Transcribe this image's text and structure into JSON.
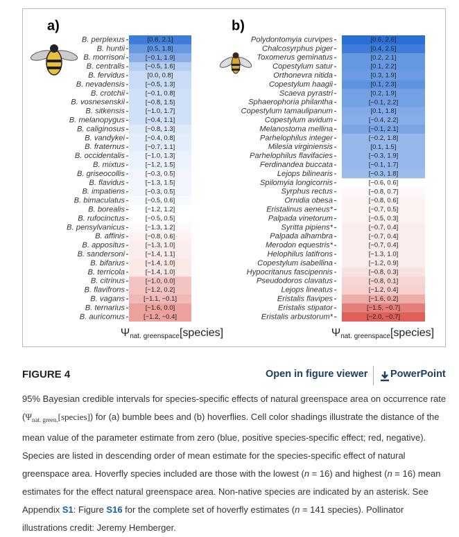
{
  "figure": {
    "colors": {
      "positive": "#2a6fd6",
      "negative": "#d8433a"
    },
    "panels": [
      {
        "label": "a)",
        "x_label": {
          "symbol": "Ψ",
          "sub": "nat. greenspace",
          "main": "[species]"
        },
        "rows": [
          [
            "B. perplexus",
            0.8,
            2.1,
            "[0.8, 2.1]"
          ],
          [
            "B. huntii",
            0.5,
            1.8,
            "[0.5, 1.8]"
          ],
          [
            "B. morrisoni",
            -0.1,
            1.9,
            "[−0.1, 1.9]"
          ],
          [
            "B. centralis",
            -0.5,
            1.6,
            "[−0.5, 1.6]"
          ],
          [
            "B. fervidus",
            0.0,
            0.8,
            "[0.0, 0.8]"
          ],
          [
            "B. nevadensis",
            -0.5,
            1.3,
            "[−0.5, 1.3]"
          ],
          [
            "B. crotchii",
            -0.1,
            0.8,
            "[−0.1, 0.8]"
          ],
          [
            "B. vosnesenskii",
            -0.8,
            1.5,
            "[−0.8, 1.5]"
          ],
          [
            "B. sitkensis",
            -1.0,
            1.7,
            "[−1.0, 1.7]"
          ],
          [
            "B. melanopygus",
            -0.4,
            1.1,
            "[−0.4, 1.1]"
          ],
          [
            "B. caliginosus",
            -0.8,
            1.3,
            "[−0.8, 1.3]"
          ],
          [
            "B. vandykei",
            -0.4,
            0.8,
            "[−0.4, 0.8]"
          ],
          [
            "B. fraternus",
            -0.7,
            1.1,
            "[−0.7, 1.1]"
          ],
          [
            "B. occidentalis",
            -1.0,
            1.3,
            "[−1.0, 1.3]"
          ],
          [
            "B. mixtus",
            -1.2,
            1.5,
            "[−1.2, 1.5]"
          ],
          [
            "B. griseocollis",
            -0.3,
            0.5,
            "[−0.3, 0.5]"
          ],
          [
            "B. flavidus",
            -1.3,
            1.5,
            "[−1.3, 1.5]"
          ],
          [
            "B. impatiens",
            -0.3,
            0.5,
            "[−0.3, 0.5]"
          ],
          [
            "B. bimaculatus",
            -0.5,
            0.6,
            "[−0.5, 0.6]"
          ],
          [
            "B. borealis",
            -1.2,
            1.2,
            "[−1.2, 1.2]"
          ],
          [
            "B. rufocinctus",
            -0.5,
            0.5,
            "[−0.5, 0.5]"
          ],
          [
            "B. pensylvanicus",
            -1.3,
            1.2,
            "[−1.3, 1.2]"
          ],
          [
            "B. affinis",
            -0.8,
            0.6,
            "[−0.8, 0.6]"
          ],
          [
            "B. appositus",
            -1.3,
            1.0,
            "[−1.3, 1.0]"
          ],
          [
            "B. sandersoni",
            -1.4,
            1.1,
            "[−1.4, 1.1]"
          ],
          [
            "B. bifarius",
            -1.4,
            1.0,
            "[−1.4, 1.0]"
          ],
          [
            "B. terricola",
            -1.4,
            1.0,
            "[−1.4, 1.0]"
          ],
          [
            "B. citrinus",
            -1.0,
            0.0,
            "[−1.0, 0.0]"
          ],
          [
            "B. flavifrons",
            -1.2,
            0.2,
            "[−1.2, 0.2]"
          ],
          [
            "B. vagans",
            -1.1,
            -0.1,
            "[−1.1, −0.1]"
          ],
          [
            "B. ternarius",
            -1.6,
            0.0,
            "[−1.6, 0.0]"
          ],
          [
            "B. auricomus",
            -1.2,
            -0.4,
            "[−1.2, −0.4]"
          ]
        ]
      },
      {
        "label": "b)",
        "x_label": {
          "symbol": "Ψ",
          "sub": "nat. greenspace",
          "main": "[species]"
        },
        "rows": [
          [
            "Polydontomyia curvipes",
            0.6,
            2.6,
            "[0.6, 2.6]"
          ],
          [
            "Chalcosyrphus piger",
            0.4,
            2.5,
            "[0.4, 2.5]"
          ],
          [
            "Toxomerus geminatus",
            0.2,
            2.1,
            "[0.2, 2.1]"
          ],
          [
            "Copestylum satur",
            0.1,
            2.2,
            "[0.1, 2.2]"
          ],
          [
            "Orthonevra nitida",
            0.3,
            1.9,
            "[0.3, 1.9]"
          ],
          [
            "Copestylum haagii",
            0.1,
            2.3,
            "[0.1, 2.3]"
          ],
          [
            "Scaeva pyrastri",
            0.2,
            1.9,
            "[0.2, 1.9]"
          ],
          [
            "Sphaerophoria philantha",
            -0.1,
            2.2,
            "[−0.1, 2.2]"
          ],
          [
            "Copestylum tamaulipanum",
            0.1,
            1.8,
            "[0.1, 1.8]"
          ],
          [
            "Copestylum avidum",
            -0.4,
            2.2,
            "[−0.4, 2.2]"
          ],
          [
            "Melanostoma mellina",
            -0.1,
            2.1,
            "[−0.1, 2.1]"
          ],
          [
            "Parhelophilus integer",
            -0.2,
            1.8,
            "[−0.2, 1.8]"
          ],
          [
            "Milesia virginiensis",
            0.1,
            1.5,
            "[0.1, 1.5]"
          ],
          [
            "Parhelophilus flavifacies",
            -0.3,
            1.9,
            "[−0.3, 1.9]"
          ],
          [
            "Ferdinandea buccata",
            -0.1,
            1.7,
            "[−0.1, 1.7]"
          ],
          [
            "Lejops bilinearis",
            -0.3,
            1.8,
            "[−0.3, 1.8]"
          ],
          [
            "Spilomyia longicornis",
            -0.6,
            0.6,
            "[−0.6, 0.6]"
          ],
          [
            "Syrphus rectus",
            -0.8,
            0.7,
            "[−0.8, 0.7]"
          ],
          [
            "Ornidia obesa",
            -0.8,
            0.6,
            "[−0.8, 0.6]"
          ],
          [
            "Eristalinus aeneus*",
            -0.7,
            0.5,
            "[−0.7, 0.5]"
          ],
          [
            "Palpada vinetorum",
            -0.5,
            0.3,
            "[−0.5, 0.3]"
          ],
          [
            "Syritta pipiens*",
            -0.7,
            0.4,
            "[−0.7, 0.4]"
          ],
          [
            "Palpada alhambra",
            -0.7,
            0.4,
            "[−0.7, 0.4]"
          ],
          [
            "Merodon equestris*",
            -0.7,
            0.4,
            "[−0.7, 0.4]"
          ],
          [
            "Helophilus latifrons",
            -1.3,
            1.0,
            "[−1.3, 1.0]"
          ],
          [
            "Copestylum isabellina",
            -1.2,
            0.9,
            "[−1.2, 0.9]"
          ],
          [
            "Hypocritanus fascipennis",
            -0.8,
            0.3,
            "[−0.8, 0.3]"
          ],
          [
            "Pseudodoros clavatus",
            -0.8,
            0.1,
            "[−0.8, 0.1]"
          ],
          [
            "Lejops lineatus",
            -1.2,
            0.4,
            "[−1.2, 0.4]"
          ],
          [
            "Eristalis flavipes",
            -1.6,
            0.2,
            "[−1.6, 0.2]"
          ],
          [
            "Eristalis stipator",
            -1.5,
            -0.7,
            "[−1.5, −0.7]"
          ],
          [
            "Eristalis arbustorum*",
            -2.0,
            -0.7,
            "[−2.0, −0.7]"
          ]
        ]
      }
    ]
  },
  "figure_header": {
    "title": "FIGURE 4",
    "viewer": "Open in figure viewer",
    "powerpoint": "PowerPoint"
  },
  "caption": [
    {
      "style": "plain",
      "text": "95% Bayesian credible intervals for species-specific effects of natural greenspace area on occurrence rate ("
    },
    {
      "style": "math",
      "text": "Ψ"
    },
    {
      "style": "math-sub",
      "text": "nat. green."
    },
    {
      "style": "math",
      "text": "[species]"
    },
    {
      "style": "plain",
      "text": ") for (a) bumble bees and (b) hoverflies. Cell color shadings illustrate the distance of the mean value of the parameter estimate from zero (blue, positive species-specific effect; red, negative). Species are listed in descending order of mean estimate for the species-specific effect of natural greenspace area. Hoverfly species included are those with the lowest ("
    },
    {
      "style": "italic",
      "text": "n"
    },
    {
      "style": "plain",
      "text": " = 16) and highest ("
    },
    {
      "style": "italic",
      "text": "n"
    },
    {
      "style": "plain",
      "text": " = 16) mean estimates for the effect natural greenspace area. Non-native species are indicated by an asterisk. See Appendix "
    },
    {
      "style": "link",
      "text": "S1"
    },
    {
      "style": "plain",
      "text": ": Figure "
    },
    {
      "style": "link",
      "text": "S16"
    },
    {
      "style": "plain",
      "text": " for the complete set of hoverfly estimates ("
    },
    {
      "style": "italic",
      "text": "n"
    },
    {
      "style": "plain",
      "text": " = 141 species). Pollinator illustrations credit: Jeremy Hemberger."
    }
  ]
}
